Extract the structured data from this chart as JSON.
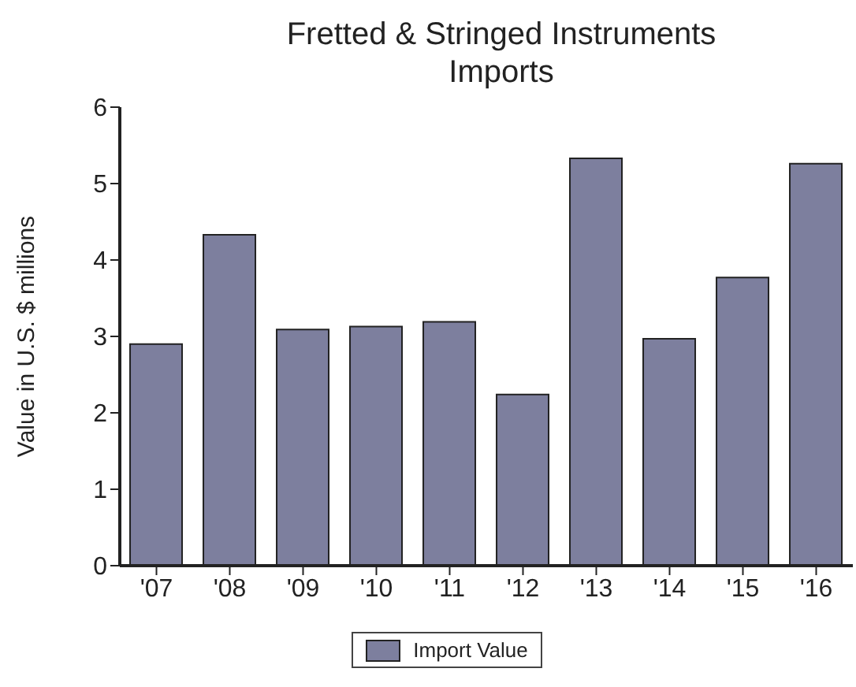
{
  "chart_data": {
    "type": "bar",
    "title": "Fretted & Stringed Instruments Imports",
    "ylabel": "Value in U.S. $ millions",
    "categories": [
      "'07",
      "'08",
      "'09",
      "'10",
      "'11",
      "'12",
      "'13",
      "'14",
      "'15",
      "'16"
    ],
    "series": [
      {
        "name": "Import Value",
        "color": "#7d7f9e",
        "values": [
          2.9,
          4.33,
          3.09,
          3.13,
          3.19,
          2.24,
          5.33,
          2.97,
          3.77,
          5.26
        ]
      }
    ],
    "ylim": [
      0,
      6
    ],
    "yticks": [
      0,
      1,
      2,
      3,
      4,
      5,
      6
    ],
    "grid": false,
    "legend": "bottom"
  }
}
